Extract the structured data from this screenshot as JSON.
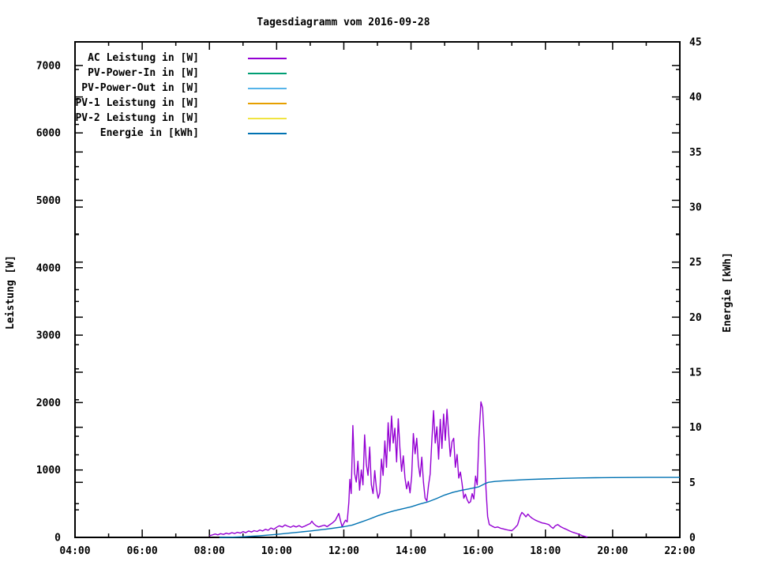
{
  "chart_data": {
    "type": "line",
    "title": "Tagesdiagramm vom 2016-09-28",
    "grid": false,
    "legend_position": "top-left-inside",
    "x_axis": {
      "label": "",
      "range_hours": [
        4,
        22
      ],
      "minor_step_hours": 1,
      "tick_hours": [
        4,
        6,
        8,
        10,
        12,
        14,
        16,
        18,
        20,
        22
      ],
      "tick_labels": [
        "04:00",
        "06:00",
        "08:00",
        "10:00",
        "12:00",
        "14:00",
        "16:00",
        "18:00",
        "20:00",
        "22:00"
      ]
    },
    "y_left": {
      "label": "Leistung [W]",
      "range": [
        0,
        7350
      ],
      "ticks": [
        0,
        1000,
        2000,
        3000,
        4000,
        5000,
        6000,
        7000
      ],
      "major_step": 1000,
      "minor_step": 500
    },
    "y_right": {
      "label": "Energie [kWh]",
      "range": [
        0,
        45
      ],
      "ticks": [
        0,
        5,
        10,
        15,
        20,
        25,
        30,
        35,
        40,
        45
      ],
      "major_step": 5,
      "minor_step": 2.5
    },
    "series": [
      {
        "name": "AC Leistung in [W]",
        "color": "#9400D3",
        "axis": "left",
        "points": [
          [
            8.0,
            25
          ],
          [
            8.08,
            35
          ],
          [
            8.17,
            50
          ],
          [
            8.25,
            38
          ],
          [
            8.33,
            55
          ],
          [
            8.42,
            45
          ],
          [
            8.5,
            62
          ],
          [
            8.58,
            50
          ],
          [
            8.67,
            70
          ],
          [
            8.75,
            58
          ],
          [
            8.83,
            75
          ],
          [
            8.92,
            63
          ],
          [
            9.0,
            85
          ],
          [
            9.08,
            70
          ],
          [
            9.17,
            95
          ],
          [
            9.25,
            80
          ],
          [
            9.33,
            100
          ],
          [
            9.42,
            88
          ],
          [
            9.5,
            110
          ],
          [
            9.58,
            95
          ],
          [
            9.67,
            120
          ],
          [
            9.75,
            105
          ],
          [
            9.83,
            140
          ],
          [
            9.92,
            120
          ],
          [
            10.0,
            150
          ],
          [
            10.08,
            172
          ],
          [
            10.17,
            155
          ],
          [
            10.25,
            185
          ],
          [
            10.33,
            165
          ],
          [
            10.42,
            150
          ],
          [
            10.5,
            172
          ],
          [
            10.58,
            155
          ],
          [
            10.67,
            175
          ],
          [
            10.75,
            150
          ],
          [
            10.83,
            165
          ],
          [
            10.92,
            188
          ],
          [
            11.0,
            205
          ],
          [
            11.05,
            240
          ],
          [
            11.1,
            205
          ],
          [
            11.17,
            175
          ],
          [
            11.25,
            155
          ],
          [
            11.33,
            168
          ],
          [
            11.42,
            182
          ],
          [
            11.5,
            160
          ],
          [
            11.58,
            188
          ],
          [
            11.67,
            218
          ],
          [
            11.75,
            255
          ],
          [
            11.8,
            305
          ],
          [
            11.85,
            355
          ],
          [
            11.9,
            250
          ],
          [
            11.95,
            160
          ],
          [
            12.0,
            210
          ],
          [
            12.05,
            255
          ],
          [
            12.1,
            230
          ],
          [
            12.15,
            520
          ],
          [
            12.18,
            860
          ],
          [
            12.22,
            650
          ],
          [
            12.27,
            1660
          ],
          [
            12.32,
            950
          ],
          [
            12.37,
            820
          ],
          [
            12.42,
            1130
          ],
          [
            12.47,
            700
          ],
          [
            12.52,
            1000
          ],
          [
            12.57,
            780
          ],
          [
            12.62,
            1520
          ],
          [
            12.67,
            1080
          ],
          [
            12.72,
            920
          ],
          [
            12.77,
            1340
          ],
          [
            12.82,
            780
          ],
          [
            12.87,
            650
          ],
          [
            12.92,
            990
          ],
          [
            12.97,
            730
          ],
          [
            13.02,
            580
          ],
          [
            13.07,
            660
          ],
          [
            13.12,
            1160
          ],
          [
            13.17,
            920
          ],
          [
            13.22,
            1430
          ],
          [
            13.27,
            1040
          ],
          [
            13.32,
            1700
          ],
          [
            13.37,
            1280
          ],
          [
            13.42,
            1800
          ],
          [
            13.47,
            1400
          ],
          [
            13.52,
            1620
          ],
          [
            13.57,
            1120
          ],
          [
            13.62,
            1760
          ],
          [
            13.67,
            1320
          ],
          [
            13.72,
            980
          ],
          [
            13.77,
            1210
          ],
          [
            13.82,
            880
          ],
          [
            13.87,
            720
          ],
          [
            13.92,
            830
          ],
          [
            13.97,
            660
          ],
          [
            14.02,
            910
          ],
          [
            14.07,
            1540
          ],
          [
            14.12,
            1240
          ],
          [
            14.17,
            1470
          ],
          [
            14.22,
            1080
          ],
          [
            14.27,
            900
          ],
          [
            14.32,
            1190
          ],
          [
            14.37,
            820
          ],
          [
            14.42,
            580
          ],
          [
            14.47,
            540
          ],
          [
            14.52,
            770
          ],
          [
            14.57,
            940
          ],
          [
            14.62,
            1430
          ],
          [
            14.67,
            1880
          ],
          [
            14.72,
            1400
          ],
          [
            14.77,
            1640
          ],
          [
            14.82,
            1160
          ],
          [
            14.87,
            1750
          ],
          [
            14.92,
            1320
          ],
          [
            14.97,
            1830
          ],
          [
            15.02,
            1440
          ],
          [
            15.07,
            1900
          ],
          [
            15.12,
            1540
          ],
          [
            15.17,
            1200
          ],
          [
            15.22,
            1420
          ],
          [
            15.27,
            1470
          ],
          [
            15.32,
            1040
          ],
          [
            15.37,
            1230
          ],
          [
            15.42,
            880
          ],
          [
            15.47,
            970
          ],
          [
            15.52,
            800
          ],
          [
            15.57,
            580
          ],
          [
            15.62,
            640
          ],
          [
            15.67,
            560
          ],
          [
            15.72,
            510
          ],
          [
            15.77,
            530
          ],
          [
            15.82,
            650
          ],
          [
            15.87,
            570
          ],
          [
            15.92,
            910
          ],
          [
            15.97,
            780
          ],
          [
            16.02,
            1480
          ],
          [
            16.08,
            2010
          ],
          [
            16.13,
            1920
          ],
          [
            16.18,
            1450
          ],
          [
            16.23,
            720
          ],
          [
            16.28,
            310
          ],
          [
            16.33,
            190
          ],
          [
            16.42,
            165
          ],
          [
            16.5,
            145
          ],
          [
            16.58,
            155
          ],
          [
            16.67,
            135
          ],
          [
            16.75,
            125
          ],
          [
            16.83,
            115
          ],
          [
            16.92,
            105
          ],
          [
            17.0,
            100
          ],
          [
            17.08,
            135
          ],
          [
            17.17,
            185
          ],
          [
            17.25,
            320
          ],
          [
            17.3,
            370
          ],
          [
            17.37,
            335
          ],
          [
            17.42,
            305
          ],
          [
            17.48,
            345
          ],
          [
            17.53,
            315
          ],
          [
            17.6,
            285
          ],
          [
            17.7,
            255
          ],
          [
            17.8,
            235
          ],
          [
            17.9,
            215
          ],
          [
            18.0,
            205
          ],
          [
            18.1,
            190
          ],
          [
            18.17,
            155
          ],
          [
            18.23,
            135
          ],
          [
            18.3,
            175
          ],
          [
            18.37,
            190
          ],
          [
            18.45,
            160
          ],
          [
            18.53,
            140
          ],
          [
            18.62,
            120
          ],
          [
            18.72,
            95
          ],
          [
            18.82,
            75
          ],
          [
            18.92,
            60
          ],
          [
            19.0,
            45
          ],
          [
            19.1,
            25
          ],
          [
            19.2,
            10
          ],
          [
            19.25,
            5
          ]
        ]
      },
      {
        "name": "PV-Power-In in [W]",
        "color": "#009E73",
        "axis": "left",
        "points": []
      },
      {
        "name": "PV-Power-Out in [W]",
        "color": "#56B4E9",
        "axis": "left",
        "points": []
      },
      {
        "name": "PV-1 Leistung in [W]",
        "color": "#E69F00",
        "axis": "left",
        "points": []
      },
      {
        "name": "PV-2 Leistung in [W]",
        "color": "#F0E442",
        "axis": "left",
        "points": []
      },
      {
        "name": "Energie in [kWh]",
        "color": "#0072B2",
        "axis": "right",
        "points": [
          [
            8.3,
            0
          ],
          [
            8.7,
            0.02
          ],
          [
            9.0,
            0.06
          ],
          [
            9.5,
            0.15
          ],
          [
            10.0,
            0.27
          ],
          [
            10.5,
            0.42
          ],
          [
            11.0,
            0.58
          ],
          [
            11.5,
            0.76
          ],
          [
            12.0,
            0.97
          ],
          [
            12.25,
            1.12
          ],
          [
            12.5,
            1.38
          ],
          [
            12.75,
            1.65
          ],
          [
            13.0,
            1.95
          ],
          [
            13.25,
            2.2
          ],
          [
            13.5,
            2.42
          ],
          [
            13.75,
            2.6
          ],
          [
            14.0,
            2.78
          ],
          [
            14.25,
            3.02
          ],
          [
            14.5,
            3.22
          ],
          [
            14.75,
            3.52
          ],
          [
            15.0,
            3.85
          ],
          [
            15.25,
            4.1
          ],
          [
            15.5,
            4.28
          ],
          [
            15.75,
            4.42
          ],
          [
            16.0,
            4.58
          ],
          [
            16.1,
            4.72
          ],
          [
            16.2,
            4.88
          ],
          [
            16.3,
            5.0
          ],
          [
            16.5,
            5.08
          ],
          [
            16.75,
            5.14
          ],
          [
            17.0,
            5.18
          ],
          [
            17.5,
            5.26
          ],
          [
            18.0,
            5.31
          ],
          [
            18.5,
            5.36
          ],
          [
            19.0,
            5.4
          ],
          [
            19.5,
            5.42
          ],
          [
            20.0,
            5.43
          ],
          [
            21.0,
            5.45
          ],
          [
            22.0,
            5.45
          ]
        ]
      }
    ]
  }
}
